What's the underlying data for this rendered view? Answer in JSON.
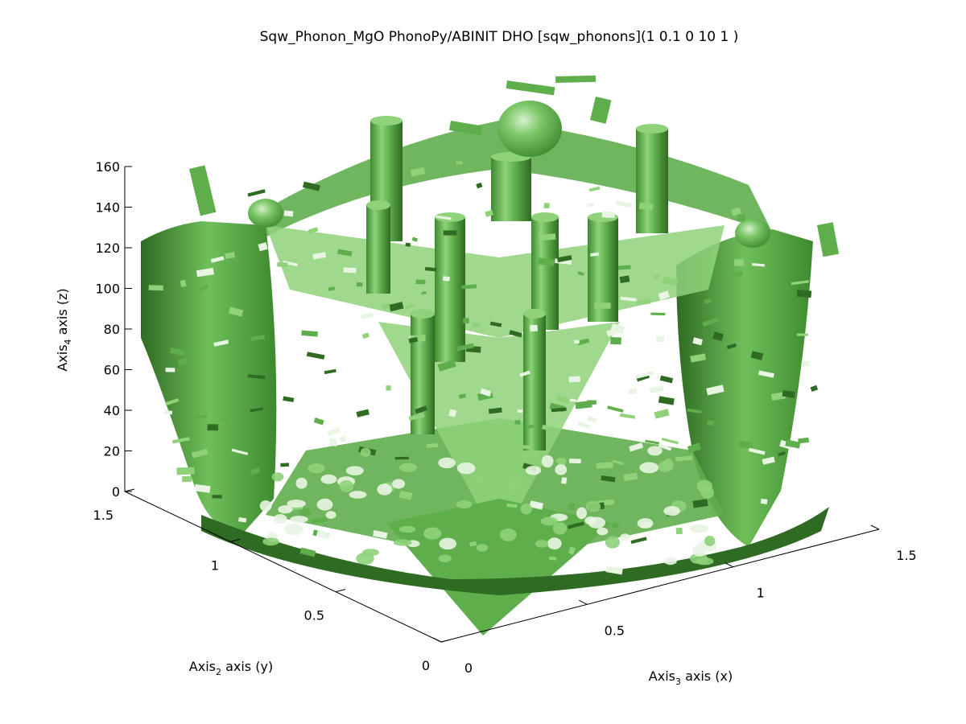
{
  "chart_data": {
    "type": "surface",
    "title": "Sqw_Phonon_MgO PhonoPy/ABINIT DHO [sqw_phonons](1 0.1 0 10 1 )",
    "z_axis": {
      "label_base": "Axis",
      "label_sub": "4",
      "label_rest": " axis (z)",
      "ticks": [
        "0",
        "20",
        "40",
        "60",
        "80",
        "100",
        "120",
        "140",
        "160"
      ],
      "range": [
        0,
        160
      ]
    },
    "y_axis": {
      "label_base": "Axis",
      "label_sub": "2",
      "label_rest": " axis (y)",
      "ticks": [
        "0",
        "0.5",
        "1",
        "1.5"
      ],
      "range": [
        0,
        1.5
      ]
    },
    "x_axis": {
      "label_base": "Axis",
      "label_sub": "3",
      "label_rest": " axis (x)",
      "ticks": [
        "0",
        "0.5",
        "1",
        "1.5"
      ],
      "range": [
        0,
        1.5
      ]
    },
    "colors": {
      "surface_light": "#8fd27a",
      "surface_mid": "#5fae4c",
      "surface_dark": "#2f6b22",
      "surface_highlight": "#e8f5e2"
    },
    "grid": false
  }
}
